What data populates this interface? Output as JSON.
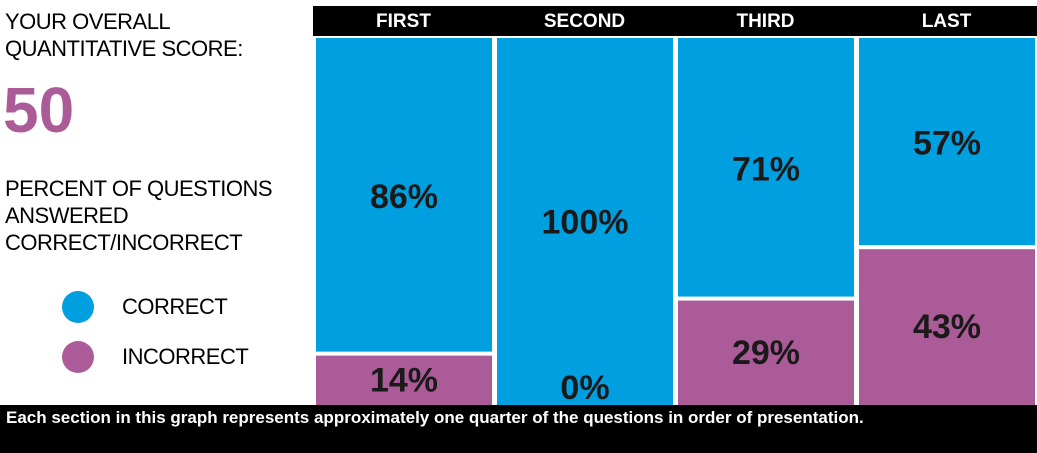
{
  "score": {
    "label": "YOUR OVERALL\nQUANTITATIVE SCORE:",
    "value": "50"
  },
  "percent_label": "PERCENT OF QUESTIONS ANSWERED CORRECT/INCORRECT",
  "legend": [
    {
      "label": "CORRECT",
      "color": "#009fdf"
    },
    {
      "label": "INCORRECT",
      "color": "#ab5b97"
    }
  ],
  "footer_note": "Each section in this graph represents approximately one quarter of the questions in order of presentation.",
  "colors": {
    "correct": "#009fdf",
    "incorrect": "#ab5b97",
    "score": "#ab5b97",
    "header": "#000000"
  },
  "chart_data": {
    "type": "bar",
    "stacked": true,
    "categories": [
      "FIRST",
      "SECOND",
      "THIRD",
      "LAST"
    ],
    "series": [
      {
        "name": "CORRECT",
        "values": [
          86,
          100,
          71,
          57
        ],
        "labels": [
          "86%",
          "100%",
          "71%",
          "57%"
        ]
      },
      {
        "name": "INCORRECT",
        "values": [
          14,
          0,
          29,
          43
        ],
        "labels": [
          "14%",
          "0%",
          "29%",
          "43%"
        ]
      }
    ],
    "ylim": [
      0,
      100
    ],
    "legend_position": "left"
  }
}
